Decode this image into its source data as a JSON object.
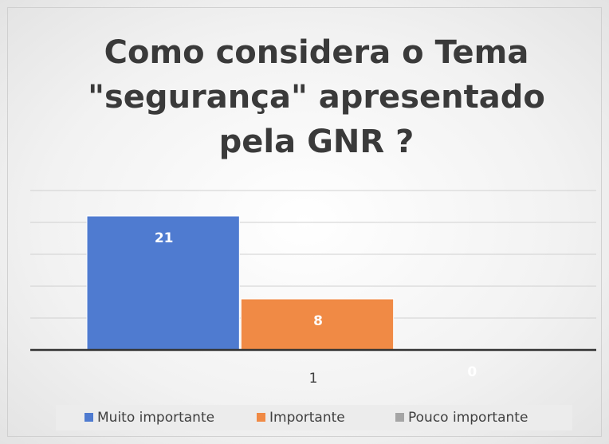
{
  "chart_data": {
    "type": "bar",
    "title": "Como considera o Tema \"segurança\" apresentado pela GNR ?",
    "categories": [
      "1"
    ],
    "series": [
      {
        "name": "Muito importante",
        "color": "#4f7bd0",
        "values": [
          21
        ]
      },
      {
        "name": "Importante",
        "color": "#f08a45",
        "values": [
          8
        ]
      },
      {
        "name": "Pouco importante",
        "color": "#a5a5a5",
        "values": [
          0
        ]
      }
    ],
    "ylim": [
      0,
      25
    ],
    "yticks": [
      0,
      5,
      10,
      15,
      20,
      25
    ],
    "grid": true,
    "legend": "bottom"
  }
}
